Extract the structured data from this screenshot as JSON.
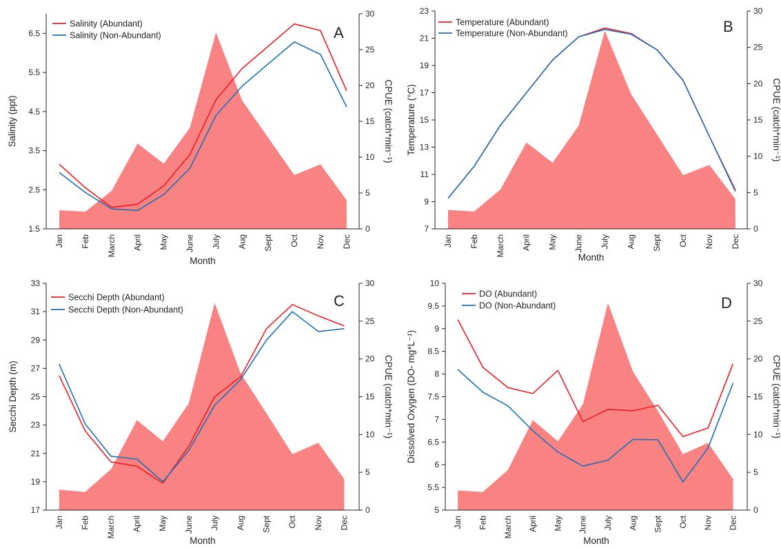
{
  "figure": {
    "xlabel": "Month",
    "months": [
      "Jan",
      "Feb",
      "March",
      "April",
      "May",
      "June",
      "July",
      "Aug",
      "Sept",
      "Oct",
      "Nov",
      "Dec"
    ]
  },
  "colors": {
    "abundant": "#ed1c24",
    "non_abundant": "#1f6fb5",
    "cpue_area": "#f98282",
    "axis": "#231f20"
  },
  "chart_data": [
    {
      "panel": "A",
      "type": "line",
      "xlabel": "Month",
      "ylabel": "Salinity (ppt)",
      "y2label": "CPUE (catch*min⁻¹)",
      "ylim": [
        1.5,
        7.0
      ],
      "yticks": [
        1.5,
        2.5,
        3.5,
        4.5,
        5.5,
        6.5
      ],
      "y2lim": [
        0,
        30
      ],
      "y2ticks": [
        0,
        5,
        10,
        15,
        20,
        25,
        30
      ],
      "categories": [
        "Jan",
        "Feb",
        "March",
        "April",
        "May",
        "June",
        "July",
        "Aug",
        "Sept",
        "Oct",
        "Nov",
        "Dec"
      ],
      "series": [
        {
          "name": "Salinity (Abundant)",
          "values": [
            3.15,
            2.55,
            2.05,
            2.13,
            2.6,
            3.4,
            4.8,
            5.6,
            6.17,
            6.74,
            6.57,
            5.03
          ]
        },
        {
          "name": "Salinity (Non-Abundant)",
          "values": [
            2.94,
            2.43,
            2.01,
            1.97,
            2.38,
            3.05,
            4.4,
            5.15,
            5.72,
            6.28,
            5.96,
            4.62
          ]
        }
      ],
      "cpue": [
        2.6,
        2.4,
        5.3,
        11.9,
        9.1,
        14.1,
        27.4,
        17.9,
        12.7,
        7.5,
        9.0,
        4.0
      ],
      "legend_position": "top-left"
    },
    {
      "panel": "B",
      "type": "line",
      "xlabel": "Month",
      "ylabel": "Temperature (°C)",
      "y2label": "CPUE (catch*min⁻¹)",
      "ylim": [
        7,
        23
      ],
      "yticks": [
        7,
        9,
        11,
        13,
        15,
        17,
        19,
        21,
        23
      ],
      "y2lim": [
        0,
        30
      ],
      "y2ticks": [
        0,
        5,
        10,
        15,
        20,
        25,
        30
      ],
      "categories": [
        "Jan",
        "Feb",
        "March",
        "April",
        "May",
        "June",
        "July",
        "Aug",
        "Sept",
        "Oct",
        "Nov",
        "Dec"
      ],
      "series": [
        {
          "name": "Temperature (Abundant)",
          "values": [
            9.25,
            11.6,
            14.6,
            17.0,
            19.4,
            21.1,
            21.75,
            21.35,
            20.15,
            17.9,
            13.8,
            9.85
          ]
        },
        {
          "name": "Temperature (Non-Abundant)",
          "values": [
            9.25,
            11.6,
            14.6,
            17.0,
            19.4,
            21.1,
            21.65,
            21.3,
            20.15,
            17.9,
            13.8,
            9.75
          ]
        }
      ],
      "cpue": [
        2.6,
        2.4,
        5.4,
        11.9,
        9.1,
        14.2,
        27.3,
        18.6,
        13.0,
        7.4,
        8.8,
        4.1
      ],
      "legend_position": "top-left"
    },
    {
      "panel": "C",
      "type": "line",
      "xlabel": "Month",
      "ylabel": "Secchi Depth (m)",
      "y2label": "CPUE (catch*min⁻¹)",
      "ylim": [
        17,
        33
      ],
      "yticks": [
        17,
        19,
        21,
        23,
        25,
        27,
        29,
        31,
        33
      ],
      "y2lim": [
        0,
        30
      ],
      "y2ticks": [
        0,
        5,
        10,
        15,
        20,
        25,
        30
      ],
      "categories": [
        "Jan",
        "Feb",
        "March",
        "April",
        "May",
        "June",
        "July",
        "Aug",
        "Sept",
        "Oct",
        "Nov",
        "Dec"
      ],
      "series": [
        {
          "name": "Secchi Depth (Abundant)",
          "values": [
            26.5,
            22.6,
            20.4,
            20.1,
            18.9,
            21.5,
            25.0,
            26.4,
            29.8,
            31.5,
            30.7,
            30.0
          ]
        },
        {
          "name": "Secchi Depth (Non-Abundant)",
          "values": [
            27.3,
            23.1,
            20.8,
            20.6,
            19.0,
            21.2,
            24.4,
            26.2,
            29.0,
            31.0,
            29.6,
            29.8
          ]
        }
      ],
      "cpue": [
        2.7,
        2.4,
        5.4,
        11.9,
        9.1,
        14.1,
        27.4,
        18.1,
        12.8,
        7.4,
        8.9,
        4.1
      ],
      "legend_position": "top-left"
    },
    {
      "panel": "D",
      "type": "line",
      "xlabel": "Month",
      "ylabel": "Dissolved Oxygen (DO- mg*L⁻¹)",
      "y2label": "CPUE (catch*min⁻¹)",
      "ylim": [
        5,
        10
      ],
      "yticks": [
        5,
        5.5,
        6,
        6.5,
        7,
        7.5,
        8,
        8.5,
        9,
        9.5,
        10
      ],
      "y2lim": [
        0,
        30
      ],
      "y2ticks": [
        0,
        5,
        10,
        15,
        20,
        25,
        30
      ],
      "categories": [
        "Jan",
        "Feb",
        "March",
        "April",
        "May",
        "June",
        "July",
        "Aug",
        "Sept",
        "Oct",
        "Nov",
        "Dec"
      ],
      "series": [
        {
          "name": "DO (Abundant)",
          "values": [
            9.2,
            8.15,
            7.7,
            7.57,
            8.08,
            6.95,
            7.22,
            7.19,
            7.31,
            6.62,
            6.81,
            8.23
          ]
        },
        {
          "name": "DO (Non-Abundant)",
          "values": [
            8.1,
            7.6,
            7.3,
            6.75,
            6.28,
            5.97,
            6.1,
            6.56,
            6.55,
            5.62,
            6.37,
            7.8
          ]
        }
      ],
      "cpue": [
        2.6,
        2.4,
        5.3,
        11.9,
        9.1,
        14.0,
        27.4,
        18.3,
        13.1,
        7.4,
        8.9,
        4.1
      ],
      "legend_position": "top-left"
    }
  ]
}
